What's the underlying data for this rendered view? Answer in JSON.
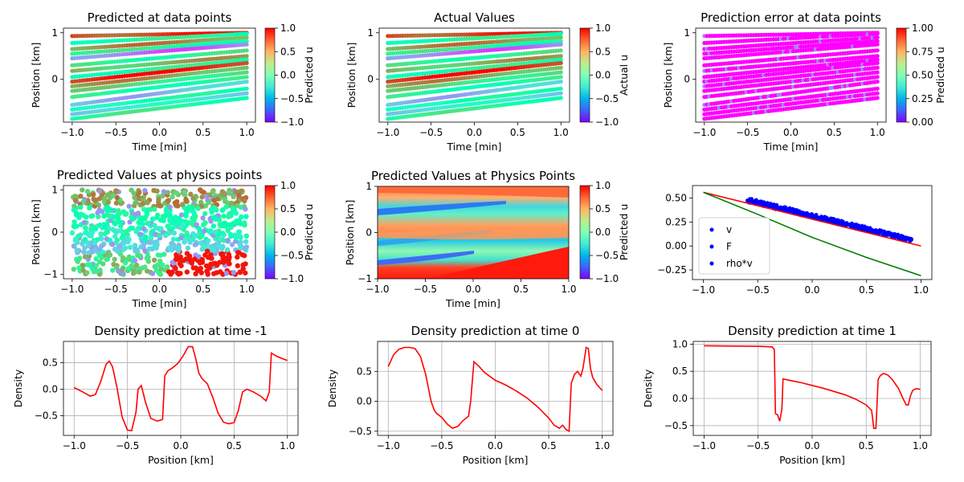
{
  "chart_data": [
    {
      "type": "scatter",
      "title": "Predicted at data points",
      "xlabel": "Time [min]",
      "ylabel": "Position [km]",
      "xlim": [
        -1.1,
        1.1
      ],
      "ylim": [
        -0.92,
        1.1
      ],
      "xticks": [
        -1.0,
        -0.5,
        0.0,
        0.5,
        1.0
      ],
      "xtick_labels": [
        "−1.0",
        "−0.5",
        "0.0",
        "0.5",
        "1.0"
      ],
      "yticks": [
        0,
        1
      ],
      "ytick_labels": [
        "0",
        "1"
      ],
      "colorbar": {
        "label": "Predicted u",
        "range": [
          -1,
          1
        ],
        "ticks": [
          "−1.0",
          "−0.5",
          "0.0",
          "0.5",
          "1.0"
        ],
        "cmap": "rainbow"
      },
      "points_description": "Points lie along parallel diagonal lines from t=-1 to t=1, positions increasing with time.",
      "lines": [
        {
          "y0": 0.93,
          "y1": 1.0,
          "u": 0.85
        },
        {
          "y0": 0.78,
          "y1": 0.98,
          "u": 0.1
        },
        {
          "y0": 0.65,
          "y1": 0.9,
          "u": 0.6
        },
        {
          "y0": 0.55,
          "y1": 0.82,
          "u": 0.15
        },
        {
          "y0": 0.45,
          "y1": 0.75,
          "u": -0.7
        },
        {
          "y0": 0.3,
          "y1": 0.62,
          "u": 0.2
        },
        {
          "y0": 0.18,
          "y1": 0.5,
          "u": 0.5
        },
        {
          "y0": 0.05,
          "y1": 0.42,
          "u": 0.1
        },
        {
          "y0": -0.05,
          "y1": 0.35,
          "u": 0.95
        },
        {
          "y0": -0.15,
          "y1": 0.25,
          "u": 0.55
        },
        {
          "y0": -0.25,
          "y1": 0.15,
          "u": 0.3
        },
        {
          "y0": -0.38,
          "y1": 0.05,
          "u": 0.1
        },
        {
          "y0": -0.55,
          "y1": -0.05,
          "u": -0.45
        },
        {
          "y0": -0.65,
          "y1": -0.2,
          "u": 0.0
        },
        {
          "y0": -0.75,
          "y1": -0.3,
          "u": -0.3
        },
        {
          "y0": -0.85,
          "y1": -0.4,
          "u": 0.15
        }
      ]
    },
    {
      "type": "scatter",
      "title": "Actual Values",
      "xlabel": "Time [min]",
      "ylabel": "Position [km]",
      "xlim": [
        -1.1,
        1.1
      ],
      "ylim": [
        -0.92,
        1.1
      ],
      "xticks": [
        -1.0,
        -0.5,
        0.0,
        0.5,
        1.0
      ],
      "xtick_labels": [
        "−1.0",
        "−0.5",
        "0.0",
        "0.5",
        "1.0"
      ],
      "yticks": [
        0,
        1
      ],
      "ytick_labels": [
        "0",
        "1"
      ],
      "colorbar": {
        "label": "Actual u",
        "range": [
          -1,
          1
        ],
        "ticks": [
          "−1.0",
          "−0.5",
          "0.0",
          "0.5",
          "1.0"
        ],
        "cmap": "rainbow"
      }
    },
    {
      "type": "scatter",
      "title": "Prediction error at data points",
      "xlabel": "Time [min]",
      "ylabel": "Position [km]",
      "xlim": [
        -1.1,
        1.1
      ],
      "ylim": [
        -0.92,
        1.1
      ],
      "xticks": [
        -1.0,
        -0.5,
        0.0,
        0.5,
        1.0
      ],
      "xtick_labels": [
        "−1.0",
        "−0.5",
        "0.0",
        "0.5",
        "1.0"
      ],
      "yticks": [
        0,
        1
      ],
      "ytick_labels": [
        "0",
        "1"
      ],
      "colorbar": {
        "label": "Predicted u",
        "range": [
          0,
          1
        ],
        "ticks": [
          "0.00",
          "0.25",
          "0.50",
          "0.75",
          "1.00"
        ],
        "cmap": "rainbow"
      },
      "error_level": 0.02
    },
    {
      "type": "scatter",
      "title": "Predicted Values at physics points",
      "xlabel": "Time [min]",
      "ylabel": "Position [km]",
      "xlim": [
        -1.1,
        1.1
      ],
      "ylim": [
        -1.1,
        1.1
      ],
      "xticks": [
        -1.0,
        -0.5,
        0.0,
        0.5,
        1.0
      ],
      "xtick_labels": [
        "−1.0",
        "−0.5",
        "0.0",
        "0.5",
        "1.0"
      ],
      "yticks": [
        -1,
        0,
        1
      ],
      "ytick_labels": [
        "−1",
        "0",
        "1"
      ],
      "colorbar": {
        "label": "Predicted u",
        "range": [
          -1,
          1
        ],
        "ticks": [
          "−1.0",
          "−0.5",
          "0.0",
          "0.5",
          "1.0"
        ],
        "cmap": "rainbow"
      }
    },
    {
      "type": "heatmap",
      "title": "Predicted Values at Physics Points",
      "xlabel": "Time [min]",
      "ylabel": "Position [km]",
      "xlim": [
        -1,
        1
      ],
      "ylim": [
        -1,
        1
      ],
      "xticks": [
        -1.0,
        -0.5,
        0.0,
        0.5,
        1.0
      ],
      "xtick_labels": [
        "−1.0",
        "−0.5",
        "0.0",
        "0.5",
        "1.0"
      ],
      "yticks": [
        -1,
        0,
        1
      ],
      "ytick_labels": [
        "−1",
        "0",
        "1"
      ],
      "colorbar": {
        "label": "Predicted u",
        "range": [
          -1,
          1
        ],
        "ticks": [
          "−1.0",
          "−0.5",
          "0.0",
          "0.5",
          "1.0"
        ],
        "cmap": "rainbow"
      }
    },
    {
      "type": "line",
      "title": "",
      "xlim": [
        -1.1,
        1.1
      ],
      "ylim": [
        -0.35,
        0.63
      ],
      "xticks": [
        -1.0,
        -0.5,
        0.0,
        0.5,
        1.0
      ],
      "xtick_labels": [
        "−1.0",
        "−0.5",
        "0.0",
        "0.5",
        "1.0"
      ],
      "yticks": [
        -0.25,
        0.0,
        0.25,
        0.5
      ],
      "ytick_labels": [
        "−0.25",
        "0.00",
        "0.25",
        "0.50"
      ],
      "legend": {
        "placement": "lower-left",
        "entries": [
          "v",
          "F",
          "rho*v"
        ]
      },
      "series": [
        {
          "name": "v",
          "kind": "scatter",
          "color": "#0000ff",
          "x_range": [
            -0.6,
            0.92
          ],
          "y_start": 0.48,
          "y_end": 0.06
        },
        {
          "name": "F",
          "kind": "scatter",
          "color": "#0000ff"
        },
        {
          "name": "rho*v",
          "kind": "scatter",
          "color": "#0000ff"
        },
        {
          "kind": "line",
          "color": "#ff0000",
          "x": [
            -1.0,
            1.0
          ],
          "y": [
            0.56,
            0.0
          ]
        },
        {
          "kind": "line",
          "color": "#008000",
          "x": [
            -1.0,
            -0.5,
            0.0,
            0.5,
            1.0
          ],
          "y": [
            0.56,
            0.33,
            0.09,
            -0.12,
            -0.31
          ]
        }
      ]
    },
    {
      "type": "line",
      "title": "Density prediction at time -1",
      "xlabel": "Position [km]",
      "ylabel": "Density",
      "xlim": [
        -1.1,
        1.1
      ],
      "ylim": [
        -0.87,
        0.9
      ],
      "xticks": [
        -1.0,
        -0.5,
        0.0,
        0.5,
        1.0
      ],
      "xtick_labels": [
        "−1.0",
        "−0.5",
        "0.0",
        "0.5",
        "1.0"
      ],
      "yticks": [
        -0.5,
        0.0,
        0.5
      ],
      "ytick_labels": [
        "−0.5",
        "0.0",
        "0.5"
      ],
      "grid": true,
      "series": [
        {
          "color": "#ff0000",
          "x": [
            -1.0,
            -0.92,
            -0.85,
            -0.8,
            -0.75,
            -0.7,
            -0.67,
            -0.64,
            -0.6,
            -0.55,
            -0.5,
            -0.46,
            -0.42,
            -0.4,
            -0.37,
            -0.33,
            -0.28,
            -0.22,
            -0.17,
            -0.15,
            -0.12,
            -0.08,
            -0.03,
            0.02,
            0.07,
            0.11,
            0.14,
            0.17,
            0.2,
            0.25,
            0.3,
            0.35,
            0.4,
            0.45,
            0.5,
            0.54,
            0.58,
            0.62,
            0.68,
            0.75,
            0.8,
            0.83,
            0.85,
            0.9,
            0.95,
            1.0
          ],
          "y": [
            0.03,
            -0.05,
            -0.13,
            -0.1,
            0.15,
            0.47,
            0.53,
            0.42,
            0.05,
            -0.52,
            -0.77,
            -0.78,
            -0.43,
            0.0,
            0.07,
            -0.25,
            -0.55,
            -0.6,
            -0.57,
            0.25,
            0.35,
            0.4,
            0.48,
            0.62,
            0.8,
            0.8,
            0.58,
            0.3,
            0.2,
            0.1,
            -0.15,
            -0.45,
            -0.62,
            -0.65,
            -0.63,
            -0.4,
            -0.05,
            0.0,
            -0.05,
            -0.13,
            -0.22,
            -0.05,
            0.68,
            0.62,
            0.58,
            0.54
          ]
        }
      ]
    },
    {
      "type": "line",
      "title": "Density prediction at time 0",
      "xlabel": "Position [km]",
      "ylabel": "Density",
      "xlim": [
        -1.1,
        1.1
      ],
      "ylim": [
        -0.57,
        1.0
      ],
      "xticks": [
        -1.0,
        -0.5,
        0.0,
        0.5,
        1.0
      ],
      "xtick_labels": [
        "−1.0",
        "−0.5",
        "0.0",
        "0.5",
        "1.0"
      ],
      "yticks": [
        -0.5,
        0.0,
        0.5
      ],
      "ytick_labels": [
        "−0.5",
        "0.0",
        "0.5"
      ],
      "grid": true,
      "series": [
        {
          "color": "#ff0000",
          "x": [
            -1.0,
            -0.95,
            -0.9,
            -0.85,
            -0.8,
            -0.75,
            -0.7,
            -0.65,
            -0.6,
            -0.57,
            -0.55,
            -0.5,
            -0.45,
            -0.4,
            -0.35,
            -0.3,
            -0.25,
            -0.23,
            -0.2,
            -0.15,
            -0.1,
            0.0,
            0.1,
            0.2,
            0.3,
            0.4,
            0.5,
            0.55,
            0.6,
            0.63,
            0.66,
            0.69,
            0.71,
            0.74,
            0.77,
            0.8,
            0.82,
            0.85,
            0.87,
            0.89,
            0.91,
            0.95,
            1.0
          ],
          "y": [
            0.58,
            0.78,
            0.87,
            0.9,
            0.9,
            0.88,
            0.75,
            0.45,
            0.0,
            -0.15,
            -0.2,
            -0.27,
            -0.38,
            -0.45,
            -0.42,
            -0.32,
            -0.25,
            0.0,
            0.66,
            0.58,
            0.48,
            0.35,
            0.27,
            0.17,
            0.05,
            -0.1,
            -0.28,
            -0.4,
            -0.45,
            -0.4,
            -0.47,
            -0.5,
            0.3,
            0.45,
            0.5,
            0.42,
            0.55,
            0.9,
            0.88,
            0.55,
            0.4,
            0.28,
            0.18
          ]
        }
      ]
    },
    {
      "type": "line",
      "title": "Density prediction at time 1",
      "xlabel": "Position [km]",
      "ylabel": "Density",
      "xlim": [
        -1.1,
        1.1
      ],
      "ylim": [
        -0.68,
        1.05
      ],
      "xticks": [
        -1.0,
        -0.5,
        0.0,
        0.5,
        1.0
      ],
      "xtick_labels": [
        "−1.0",
        "−0.5",
        "0.0",
        "0.5",
        "1.0"
      ],
      "yticks": [
        -0.5,
        0.0,
        0.5,
        1.0
      ],
      "ytick_labels": [
        "−0.5",
        "0.0",
        "0.5",
        "1.0"
      ],
      "grid": true,
      "series": [
        {
          "color": "#ff0000",
          "x": [
            -1.0,
            -0.5,
            -0.37,
            -0.35,
            -0.34,
            -0.32,
            -0.3,
            -0.28,
            -0.27,
            -0.2,
            -0.1,
            0.0,
            0.1,
            0.2,
            0.3,
            0.4,
            0.5,
            0.55,
            0.57,
            0.59,
            0.61,
            0.63,
            0.66,
            0.7,
            0.74,
            0.8,
            0.84,
            0.87,
            0.89,
            0.91,
            0.93,
            0.96,
            1.0
          ],
          "y": [
            0.97,
            0.96,
            0.95,
            0.9,
            -0.28,
            -0.3,
            -0.42,
            -0.2,
            0.36,
            0.33,
            0.29,
            0.24,
            0.19,
            0.13,
            0.07,
            -0.01,
            -0.12,
            -0.22,
            -0.55,
            -0.55,
            0.35,
            0.42,
            0.46,
            0.43,
            0.35,
            0.18,
            0.0,
            -0.12,
            -0.12,
            0.05,
            0.15,
            0.18,
            0.17
          ]
        }
      ]
    }
  ]
}
